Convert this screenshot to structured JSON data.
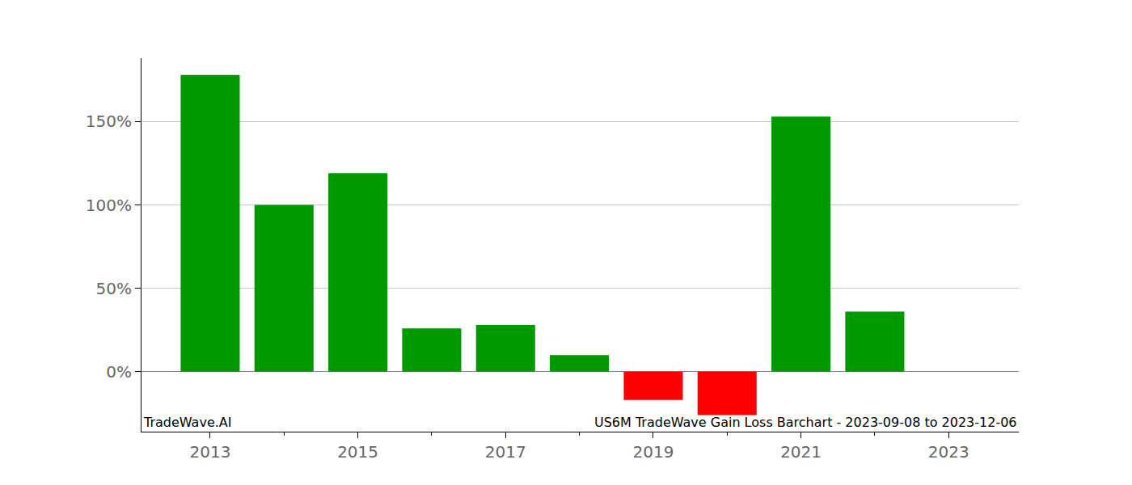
{
  "chart_data": {
    "type": "bar",
    "x": [
      2013,
      2014,
      2015,
      2016,
      2017,
      2018,
      2019,
      2020,
      2021,
      2022
    ],
    "values": [
      178,
      100,
      119,
      26,
      28,
      10,
      -17,
      -26,
      153,
      36
    ],
    "colors": [
      "#009900",
      "#009900",
      "#009900",
      "#009900",
      "#009900",
      "#009900",
      "#ff0000",
      "#ff0000",
      "#009900",
      "#009900"
    ],
    "xlim": [
      2012.07,
      2023.95
    ],
    "xticks": [
      2013,
      2015,
      2017,
      2019,
      2021,
      2023
    ],
    "ylim": [
      -36,
      188
    ],
    "yticks": [
      {
        "value": 0,
        "label": "0%"
      },
      {
        "value": 50,
        "label": "50%"
      },
      {
        "value": 100,
        "label": "100%"
      },
      {
        "value": 150,
        "label": "150%"
      }
    ],
    "grid": true,
    "annotations": [
      "TradeWave.AI",
      "US6M TradeWave Gain Loss Barchart - 2023-09-08 to 2023-12-06"
    ]
  }
}
